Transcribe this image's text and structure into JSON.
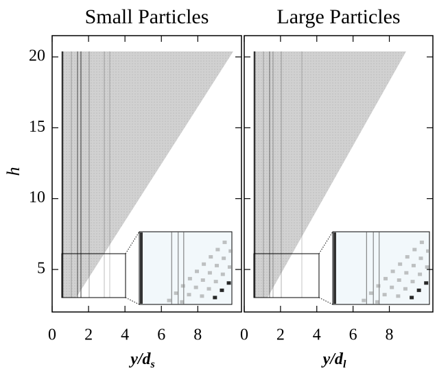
{
  "chart_data": [
    {
      "type": "density",
      "title": "Small Particles",
      "y_label": "h",
      "x_label": "y/d",
      "x_label_sub": "s",
      "xlim": [
        0,
        10.4
      ],
      "xticks": [
        0,
        2,
        4,
        6,
        8
      ],
      "ylim": [
        2,
        21.5
      ],
      "yticks": [
        5,
        10,
        15,
        20
      ]
    },
    {
      "type": "density",
      "title": "Large Particles",
      "x_label": "y/d",
      "x_label_sub": "l",
      "xlim": [
        0,
        10.4
      ],
      "xticks": [
        0,
        2,
        4,
        6,
        8
      ],
      "ylim": [
        2,
        21.5
      ],
      "yticks": [
        5,
        10,
        15,
        20
      ]
    }
  ]
}
